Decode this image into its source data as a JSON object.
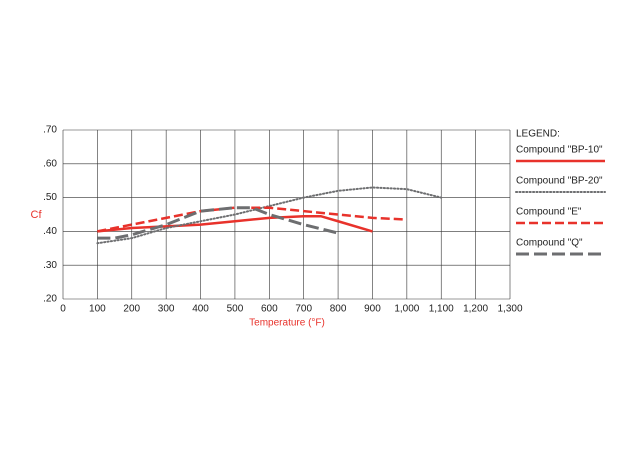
{
  "chart_data": {
    "type": "line",
    "xlabel": "Temperature (°F)",
    "ylabel": "Cf",
    "legend_title": "LEGEND:",
    "legend": "right",
    "xlim": [
      0,
      1300
    ],
    "ylim": [
      0.2,
      0.7
    ],
    "xticks": [
      0,
      100,
      200,
      300,
      400,
      500,
      600,
      700,
      800,
      900,
      {
        "value": 1000,
        "label": "1,000"
      },
      {
        "value": 1100,
        "label": "1,100"
      },
      {
        "value": 1200,
        "label": "1,200"
      },
      {
        "value": 1300,
        "label": "1,300"
      }
    ],
    "yticks": [
      {
        "value": 0.2,
        "label": ".20"
      },
      {
        "value": 0.3,
        "label": ".30"
      },
      {
        "value": 0.4,
        "label": ".40"
      },
      {
        "value": 0.5,
        "label": ".50"
      },
      {
        "value": 0.6,
        "label": ".60"
      },
      {
        "value": 0.7,
        "label": ".70"
      }
    ],
    "grid": true,
    "series": [
      {
        "name": "Compound \"BP-10\"",
        "color": "#e8322b",
        "dash": "solid",
        "x": [
          100,
          200,
          300,
          400,
          500,
          600,
          700,
          750,
          800,
          900
        ],
        "values": [
          0.4,
          0.41,
          0.415,
          0.42,
          0.43,
          0.44,
          0.445,
          0.445,
          0.43,
          0.4
        ]
      },
      {
        "name": "Compound \"BP-20\"",
        "color": "#6d6e70",
        "dash": "dotted",
        "x": [
          100,
          200,
          300,
          400,
          500,
          600,
          700,
          800,
          900,
          1000,
          1100
        ],
        "values": [
          0.365,
          0.38,
          0.41,
          0.43,
          0.45,
          0.475,
          0.5,
          0.52,
          0.53,
          0.525,
          0.5
        ]
      },
      {
        "name": "Compound \"E\"",
        "color": "#e8322b",
        "dash": "dashed",
        "x": [
          100,
          200,
          300,
          400,
          500,
          600,
          700,
          800,
          900,
          1000
        ],
        "values": [
          0.4,
          0.42,
          0.44,
          0.46,
          0.47,
          0.47,
          0.46,
          0.45,
          0.44,
          0.435
        ]
      },
      {
        "name": "Compound \"Q\"",
        "color": "#6d6e70",
        "dash": "longdash",
        "x": [
          100,
          150,
          200,
          300,
          400,
          500,
          550,
          600,
          700,
          800
        ],
        "values": [
          0.38,
          0.38,
          0.39,
          0.42,
          0.46,
          0.47,
          0.47,
          0.45,
          0.42,
          0.395
        ]
      }
    ]
  }
}
